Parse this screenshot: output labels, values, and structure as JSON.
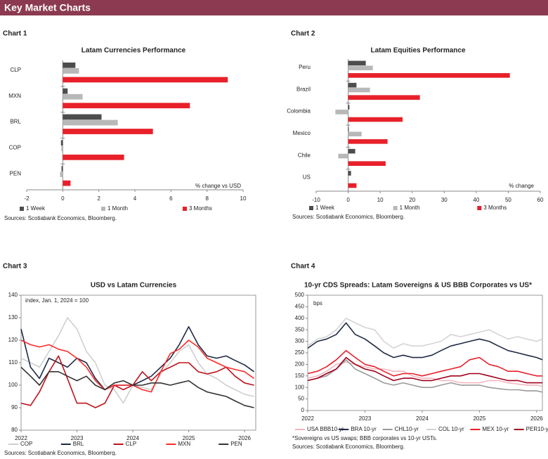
{
  "header": {
    "title": "Key Market Charts"
  },
  "chart_data": [
    {
      "type": "hbar",
      "label": "Chart 1",
      "title": "Latam Currencies Performance",
      "annotation": "% change vs USD",
      "source": "Sources: Scotiabank Economics, Bloomberg.",
      "categories": [
        "CLP",
        "MXN",
        "BRL",
        "COP",
        "PEN"
      ],
      "series": [
        {
          "name": "1 Week",
          "color": "#4d4d4d",
          "values": [
            0.7,
            0.27,
            2.15,
            -0.1,
            -0.07
          ]
        },
        {
          "name": "1 Month",
          "color": "#b8b8b8",
          "values": [
            0.9,
            1.1,
            3.05,
            -0.08,
            -0.15
          ]
        },
        {
          "name": "3 Months",
          "color": "#e8202a",
          "values": [
            9.15,
            7.05,
            5.0,
            3.4,
            0.43
          ]
        }
      ],
      "xlim": [
        -2,
        10
      ],
      "xticks": [
        -2,
        0,
        2,
        4,
        6,
        8,
        10
      ]
    },
    {
      "type": "hbar",
      "label": "Chart 2",
      "title": "Latam Equities Performance",
      "annotation": "% change",
      "source": "Sources: Scotiabank Economics, Bloomberg.",
      "categories": [
        "Peru",
        "Brazil",
        "Colombia",
        "Mexico",
        "Chile",
        "US"
      ],
      "series": [
        {
          "name": "1 Week",
          "color": "#4d4d4d",
          "values": [
            5.5,
            2.6,
            0.4,
            0.2,
            2.2,
            0.9
          ]
        },
        {
          "name": "1 Month",
          "color": "#b8b8b8",
          "values": [
            7.7,
            6.8,
            -4.0,
            4.2,
            -3.1,
            0.2
          ]
        },
        {
          "name": "3 Months",
          "color": "#e8202a",
          "values": [
            50.5,
            22.4,
            17,
            12.3,
            11.7,
            2.6
          ]
        }
      ],
      "xlim": [
        -10,
        60
      ],
      "xticks": [
        -10,
        0,
        10,
        20,
        30,
        40,
        50,
        60
      ]
    },
    {
      "type": "line",
      "label": "Chart 3",
      "title": "USD vs Latam Currencies",
      "annotation": "index, Jan. 1, 2024 = 100",
      "source": "Sources: Scotiabank Economics, Bloomberg.",
      "x": [
        2022,
        2022.17,
        2022.33,
        2022.5,
        2022.67,
        2022.83,
        2023,
        2023.17,
        2023.33,
        2023.5,
        2023.67,
        2023.83,
        2024,
        2024.17,
        2024.33,
        2024.5,
        2024.67,
        2024.83,
        2025,
        2025.17,
        2025.33,
        2025.5,
        2025.67,
        2025.83,
        2026,
        2026.17
      ],
      "series": [
        {
          "name": "COP",
          "color": "#cfcfcf",
          "values": [
            112,
            110,
            108,
            115,
            122,
            130,
            125,
            115,
            110,
            100,
            98,
            92,
            100,
            99,
            98,
            105,
            110,
            115,
            118,
            110,
            105,
            103,
            100,
            98,
            96,
            95
          ]
        },
        {
          "name": "BRL",
          "color": "#1f2a44",
          "values": [
            125,
            108,
            103,
            112,
            110,
            108,
            112,
            110,
            103,
            98,
            100,
            100,
            100,
            102,
            104,
            108,
            112,
            118,
            126,
            118,
            113,
            112,
            113,
            111,
            109,
            106
          ]
        },
        {
          "name": "CLP",
          "color": "#c0121c",
          "values": [
            92,
            91,
            97,
            106,
            113,
            103,
            92,
            92,
            90,
            92,
            100,
            98,
            100,
            106,
            102,
            106,
            108,
            110,
            110,
            106,
            105,
            106,
            108,
            104,
            101,
            100
          ]
        },
        {
          "name": "MXN",
          "color": "#ff2a2a",
          "values": [
            120,
            118,
            117,
            118,
            116,
            115,
            112,
            108,
            102,
            98,
            100,
            100,
            100,
            98,
            97,
            106,
            114,
            116,
            120,
            117,
            112,
            110,
            108,
            107,
            106,
            103
          ]
        },
        {
          "name": "PEN",
          "color": "#333333",
          "values": [
            108,
            104,
            100,
            106,
            106,
            104,
            102,
            104,
            100,
            98,
            101,
            102,
            100,
            100,
            101,
            101,
            100,
            101,
            102,
            99,
            97,
            96,
            95,
            93,
            91,
            90
          ]
        }
      ],
      "xlim": [
        2022,
        2026.2
      ],
      "xticks": [
        2022,
        2023,
        2024,
        2025,
        2026
      ],
      "ylim": [
        80,
        140
      ],
      "yticks": [
        80,
        90,
        100,
        110,
        120,
        130,
        140
      ]
    },
    {
      "type": "line",
      "label": "Chart 4",
      "title": "10-yr CDS Spreads: Latam Sovereigns & US BBB Corporates vs US*",
      "annotation": "bps",
      "footnote": "*Sovereigns vs US swaps; BBB corporates vs 10-yr USTs.",
      "source": "Sources: Scotiabank Economics, Bloomberg.",
      "x": [
        2022,
        2022.17,
        2022.33,
        2022.5,
        2022.67,
        2022.83,
        2023,
        2023.17,
        2023.33,
        2023.5,
        2023.67,
        2023.83,
        2024,
        2024.17,
        2024.33,
        2024.5,
        2024.67,
        2024.83,
        2025,
        2025.17,
        2025.33,
        2025.5,
        2025.67,
        2025.83,
        2026,
        2026.1
      ],
      "series": [
        {
          "name": "USA BBB10-yr",
          "color": "#f4b6bf",
          "values": [
            140,
            150,
            170,
            200,
            210,
            200,
            190,
            180,
            180,
            170,
            170,
            150,
            140,
            140,
            130,
            130,
            120,
            120,
            120,
            130,
            130,
            120,
            115,
            110,
            110,
            105
          ]
        },
        {
          "name": "BRA 10-yr",
          "color": "#1f2a44",
          "values": [
            270,
            300,
            310,
            330,
            380,
            330,
            310,
            280,
            250,
            230,
            240,
            230,
            230,
            240,
            260,
            280,
            290,
            300,
            310,
            300,
            280,
            260,
            250,
            240,
            230,
            220
          ]
        },
        {
          "name": "CHL10-yr",
          "color": "#9a9a9a",
          "values": [
            130,
            140,
            150,
            180,
            220,
            180,
            160,
            140,
            120,
            110,
            120,
            110,
            100,
            100,
            110,
            120,
            110,
            110,
            110,
            100,
            95,
            90,
            90,
            85,
            85,
            80
          ]
        },
        {
          "name": "COL 10-yr",
          "color": "#d4d4d4",
          "values": [
            280,
            310,
            320,
            350,
            400,
            380,
            360,
            350,
            300,
            270,
            290,
            280,
            280,
            290,
            300,
            330,
            320,
            330,
            340,
            350,
            330,
            310,
            320,
            310,
            300,
            310
          ]
        },
        {
          "name": "MEX 10-yr",
          "color": "#e8202a",
          "values": [
            160,
            170,
            190,
            220,
            260,
            230,
            200,
            190,
            170,
            150,
            160,
            160,
            150,
            160,
            170,
            180,
            190,
            220,
            230,
            200,
            190,
            170,
            170,
            160,
            150,
            150
          ]
        },
        {
          "name": "PER10-yr",
          "color": "#a0001c",
          "values": [
            130,
            140,
            160,
            180,
            230,
            200,
            180,
            170,
            150,
            130,
            140,
            140,
            130,
            130,
            140,
            150,
            150,
            160,
            160,
            150,
            140,
            130,
            130,
            120,
            120,
            120
          ]
        }
      ],
      "xlim": [
        2022,
        2026.1
      ],
      "xticks": [
        2022,
        2023,
        2024,
        2025,
        2026
      ],
      "ylim": [
        0,
        500
      ],
      "yticks": [
        0,
        50,
        100,
        150,
        200,
        250,
        300,
        350,
        400,
        450,
        500
      ]
    }
  ]
}
